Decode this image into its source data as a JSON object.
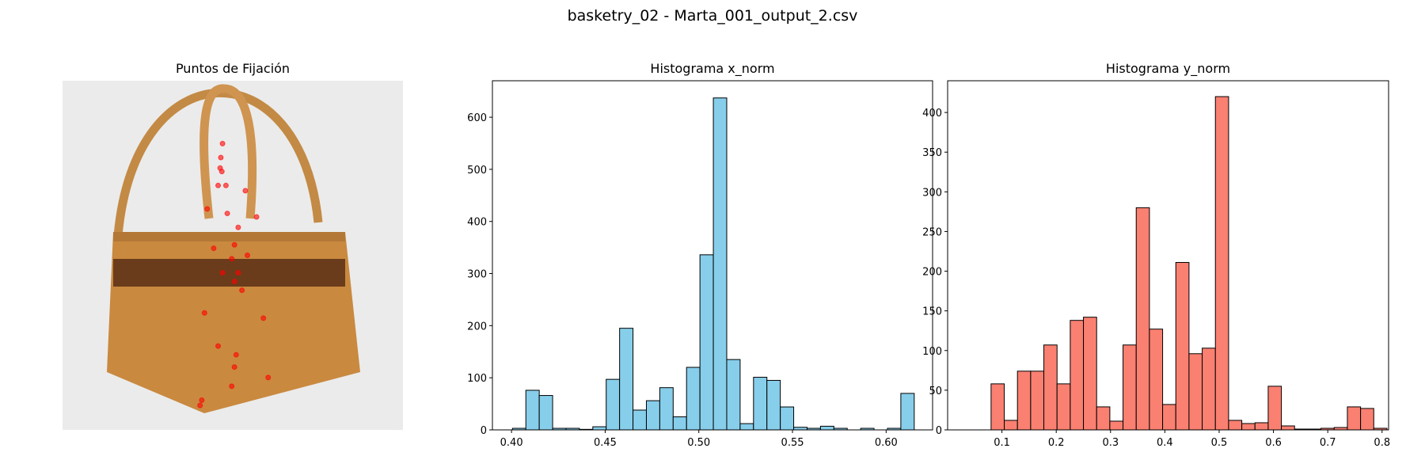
{
  "title": "basketry_02 - Marta_001_output_2.csv",
  "chart_data": [
    {
      "type": "scatter",
      "title": "Puntos de Fijación",
      "color": "#ff0000",
      "xlim": [
        0,
        1
      ],
      "ylim": [
        1,
        0
      ],
      "x": [
        0.47,
        0.465,
        0.463,
        0.468,
        0.48,
        0.457,
        0.537,
        0.484,
        0.57,
        0.505,
        0.497,
        0.516,
        0.505,
        0.527,
        0.47,
        0.417,
        0.457,
        0.51,
        0.505,
        0.604,
        0.497,
        0.409,
        0.404,
        0.444,
        0.543,
        0.59,
        0.425,
        0.516
      ],
      "y": [
        0.18,
        0.22,
        0.25,
        0.26,
        0.3,
        0.3,
        0.315,
        0.38,
        0.39,
        0.47,
        0.51,
        0.55,
        0.575,
        0.6,
        0.55,
        0.665,
        0.76,
        0.785,
        0.82,
        0.85,
        0.875,
        0.915,
        0.93,
        0.48,
        0.5,
        0.68,
        0.367,
        0.42
      ]
    },
    {
      "type": "histogram",
      "title": "Histograma x_norm",
      "color": "#87ceeb",
      "edge_color": "#000000",
      "bins": [
        0.4005,
        0.40765,
        0.4148,
        0.42195,
        0.4291,
        0.43625,
        0.4434,
        0.45055,
        0.4577,
        0.46485,
        0.472,
        0.47915,
        0.4863,
        0.49345,
        0.5006,
        0.50775,
        0.5149,
        0.52205,
        0.5292,
        0.53635,
        0.5435,
        0.55065,
        0.5578,
        0.56495,
        0.5721,
        0.57925,
        0.5864,
        0.59355,
        0.6007,
        0.60785,
        0.615
      ],
      "values": [
        3,
        76,
        66,
        3,
        3,
        1,
        6,
        97,
        195,
        38,
        56,
        81,
        25,
        120,
        336,
        637,
        135,
        12,
        101,
        95,
        44,
        5,
        3,
        7,
        3,
        0,
        3,
        0,
        3,
        70
      ],
      "xlim": [
        0.3898,
        0.6248
      ],
      "ylim": [
        0,
        670
      ],
      "xticks": [
        {
          "value": 0.4,
          "label": "0.40"
        },
        0.45,
        {
          "value": 0.5,
          "label": "0.50"
        },
        0.55,
        {
          "value": 0.6,
          "label": "0.60"
        }
      ],
      "yticks": [
        0,
        100,
        200,
        300,
        400,
        500,
        600
      ]
    },
    {
      "type": "histogram",
      "title": "Histograma y_norm",
      "color": "#fa8072",
      "edge_color": "#000000",
      "bins": [
        0.08,
        0.1043,
        0.1286,
        0.1529,
        0.1772,
        0.2015,
        0.2258,
        0.2501,
        0.2744,
        0.2987,
        0.323,
        0.3473,
        0.3716,
        0.3959,
        0.4202,
        0.4445,
        0.4688,
        0.4931,
        0.5174,
        0.5417,
        0.566,
        0.5903,
        0.6146,
        0.6389,
        0.6632,
        0.6875,
        0.7118,
        0.7361,
        0.7604,
        0.7847,
        0.809
      ],
      "values": [
        58,
        12,
        74,
        74,
        107,
        58,
        138,
        142,
        29,
        11,
        107,
        280,
        127,
        32,
        211,
        96,
        103,
        420,
        12,
        8,
        9,
        55,
        5,
        1,
        1,
        2,
        3,
        29,
        27,
        2
      ],
      "xlim": [
        0.0,
        0.812
      ],
      "ylim": [
        0,
        440
      ],
      "xticks": [
        0.1,
        0.2,
        0.3,
        0.4,
        0.5,
        0.6,
        0.7,
        0.8
      ],
      "yticks": [
        0,
        50,
        100,
        150,
        200,
        250,
        300,
        350,
        400
      ]
    }
  ]
}
